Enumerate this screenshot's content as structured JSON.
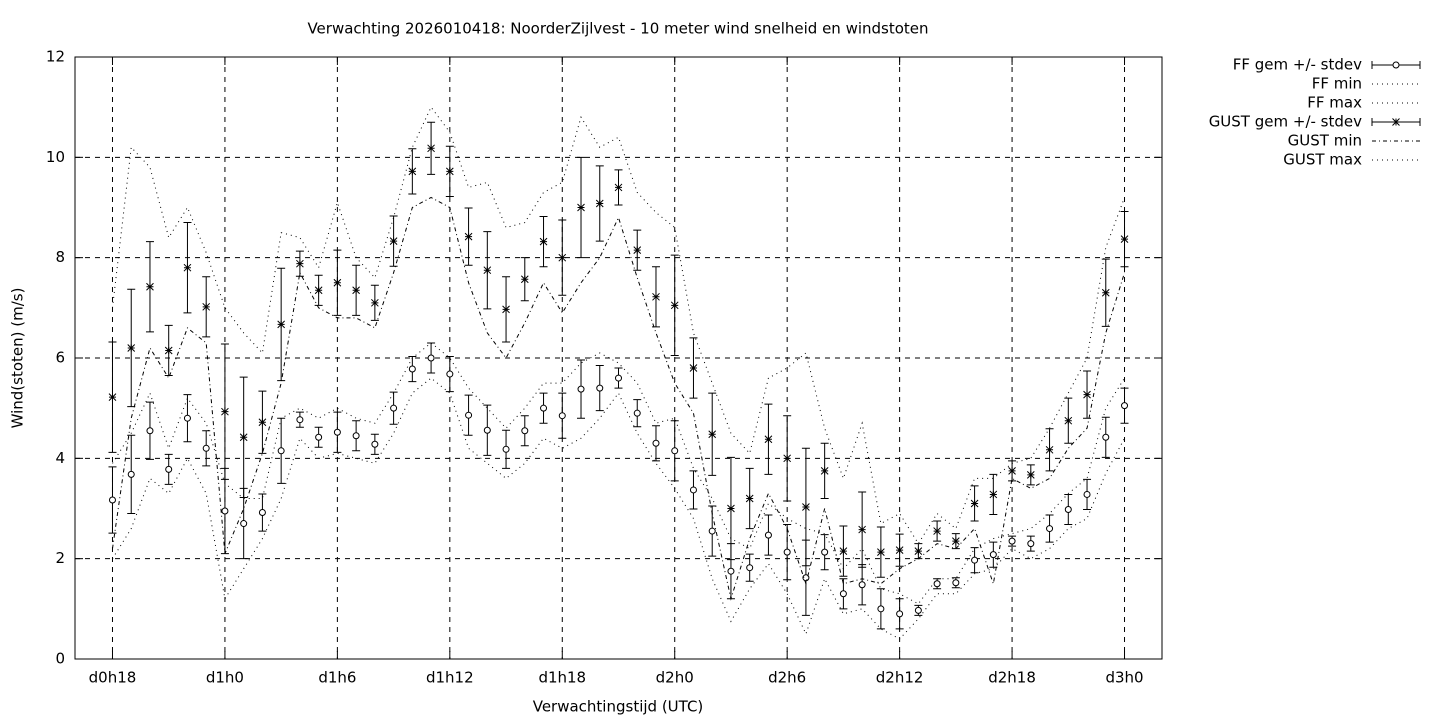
{
  "chart_data": {
    "type": "errorbar",
    "title": "Verwachting 2026010418: NoorderZijlvest - 10 meter wind snelheid en windstoten",
    "xlabel": "Verwachtingstijd (UTC)",
    "ylabel": "Wind(stoten) (m/s)",
    "categories": [
      "d0h18",
      null,
      null,
      null,
      null,
      null,
      "d1h0",
      null,
      null,
      null,
      null,
      null,
      "d1h6",
      null,
      null,
      null,
      null,
      null,
      "d1h12",
      null,
      null,
      null,
      null,
      null,
      "d1h18",
      null,
      null,
      null,
      null,
      null,
      "d2h0",
      null,
      null,
      null,
      null,
      null,
      "d2h6",
      null,
      null,
      null,
      null,
      null,
      "d2h12",
      null,
      null,
      null,
      null,
      null,
      "d2h18",
      null,
      null,
      null,
      null,
      null,
      "d3h0"
    ],
    "ylim": [
      0,
      12
    ],
    "yticks": [
      0,
      2,
      4,
      6,
      8,
      10,
      12
    ],
    "grid": true,
    "legend": "outside-top-right",
    "series": [
      {
        "name": "FF gem +/- stdev",
        "color": "#000000",
        "marker": "circle",
        "values": [
          3.17,
          3.68,
          4.55,
          3.78,
          4.8,
          4.2,
          2.95,
          2.7,
          2.92,
          4.15,
          4.77,
          4.42,
          4.52,
          4.45,
          4.28,
          5.0,
          5.78,
          6.0,
          5.68,
          4.86,
          4.56,
          4.18,
          4.55,
          5.0,
          4.85,
          5.38,
          5.4,
          5.6,
          4.9,
          4.3,
          4.15,
          3.37,
          2.55,
          1.75,
          1.82,
          2.47,
          2.13,
          1.62,
          2.13,
          1.3,
          1.48,
          1.0,
          0.9,
          0.97,
          1.5,
          1.52,
          1.97,
          2.08,
          2.35,
          2.3,
          2.6,
          2.98,
          3.28,
          4.42,
          5.05
        ],
        "errors": [
          0.66,
          0.78,
          0.57,
          0.3,
          0.47,
          0.35,
          0.85,
          0.7,
          0.37,
          0.65,
          0.15,
          0.2,
          0.4,
          0.3,
          0.2,
          0.32,
          0.25,
          0.3,
          0.35,
          0.4,
          0.5,
          0.38,
          0.3,
          0.3,
          0.45,
          0.58,
          0.45,
          0.2,
          0.27,
          0.35,
          0.6,
          0.38,
          0.5,
          0.55,
          0.27,
          0.4,
          0.55,
          0.75,
          0.35,
          0.3,
          0.4,
          0.4,
          0.3,
          0.1,
          0.1,
          0.1,
          0.25,
          0.25,
          0.1,
          0.15,
          0.27,
          0.3,
          0.3,
          0.4,
          0.35
        ]
      },
      {
        "name": "FF min",
        "color": "#000000",
        "line_style": "dotted",
        "values": [
          2.0,
          2.6,
          3.6,
          3.3,
          4.0,
          3.3,
          1.2,
          1.8,
          2.4,
          3.2,
          4.4,
          4.0,
          4.1,
          4.0,
          3.9,
          4.5,
          5.3,
          5.6,
          5.3,
          4.2,
          3.9,
          3.6,
          3.9,
          4.4,
          4.2,
          4.4,
          4.8,
          5.3,
          4.5,
          3.9,
          3.4,
          2.8,
          1.6,
          0.75,
          1.4,
          1.9,
          1.3,
          0.5,
          1.6,
          0.9,
          1.0,
          0.6,
          0.4,
          0.8,
          1.3,
          1.3,
          1.7,
          1.8,
          2.2,
          2.0,
          2.2,
          2.6,
          2.8,
          3.7,
          4.4
        ]
      },
      {
        "name": "FF max",
        "color": "#000000",
        "line_style": "dotted",
        "values": [
          3.9,
          4.5,
          5.3,
          4.2,
          5.2,
          4.7,
          3.5,
          3.2,
          3.2,
          4.8,
          5.0,
          4.8,
          5.0,
          4.8,
          4.7,
          5.3,
          6.0,
          6.3,
          6.0,
          5.4,
          5.0,
          4.6,
          5.0,
          5.5,
          5.5,
          5.9,
          6.1,
          5.9,
          5.5,
          4.7,
          4.8,
          3.8,
          3.2,
          2.4,
          2.2,
          3.1,
          2.8,
          2.6,
          2.5,
          1.8,
          2.2,
          1.4,
          1.3,
          1.1,
          1.6,
          1.6,
          2.2,
          2.4,
          2.5,
          2.6,
          2.9,
          3.3,
          3.6,
          5.0,
          5.6
        ]
      },
      {
        "name": "GUST gem +/- stdev",
        "color": "#000000",
        "marker": "star",
        "values": [
          5.22,
          6.2,
          7.42,
          6.15,
          7.8,
          7.02,
          4.93,
          4.42,
          4.72,
          6.67,
          7.88,
          7.35,
          7.5,
          7.35,
          7.1,
          8.33,
          9.72,
          10.18,
          9.72,
          8.42,
          7.75,
          6.97,
          7.57,
          8.32,
          8.0,
          9.0,
          9.08,
          9.4,
          8.15,
          7.22,
          7.05,
          5.8,
          4.48,
          3.0,
          3.2,
          4.38,
          4.0,
          3.03,
          3.75,
          2.15,
          2.58,
          2.13,
          2.17,
          2.15,
          2.55,
          2.35,
          3.1,
          3.28,
          3.75,
          3.67,
          4.17,
          4.75,
          5.27,
          7.3,
          8.37
        ],
        "errors": [
          1.1,
          1.17,
          0.9,
          0.5,
          0.9,
          0.6,
          1.35,
          1.2,
          0.62,
          1.12,
          0.25,
          0.3,
          0.65,
          0.5,
          0.35,
          0.5,
          0.45,
          0.52,
          0.5,
          0.57,
          0.77,
          0.65,
          0.43,
          0.5,
          0.75,
          1.0,
          0.75,
          0.35,
          0.4,
          0.6,
          1.0,
          0.6,
          0.82,
          1.02,
          0.6,
          0.7,
          0.85,
          1.17,
          0.55,
          0.5,
          0.75,
          0.5,
          0.32,
          0.15,
          0.2,
          0.15,
          0.35,
          0.4,
          0.2,
          0.2,
          0.42,
          0.45,
          0.47,
          0.67,
          0.55
        ]
      },
      {
        "name": "GUST min",
        "color": "#000000",
        "line_style": "dashdot",
        "values": [
          2.2,
          4.8,
          6.2,
          5.6,
          6.6,
          6.3,
          2.1,
          3.0,
          4.1,
          5.5,
          7.7,
          7.0,
          6.8,
          6.8,
          6.6,
          7.7,
          9.0,
          9.2,
          9.0,
          7.5,
          6.5,
          6.0,
          6.7,
          7.5,
          6.9,
          7.5,
          8.0,
          8.8,
          7.6,
          6.5,
          5.5,
          4.9,
          2.9,
          1.2,
          2.4,
          3.3,
          2.6,
          1.5,
          3.0,
          1.5,
          1.6,
          1.5,
          1.8,
          2.0,
          2.3,
          2.2,
          2.6,
          1.5,
          3.6,
          3.4,
          3.6,
          4.2,
          4.6,
          6.5,
          7.7
        ]
      },
      {
        "name": "GUST max",
        "color": "#000000",
        "line_style": "dotted",
        "values": [
          7.0,
          10.2,
          9.8,
          8.4,
          9.0,
          8.1,
          7.0,
          6.5,
          6.1,
          8.5,
          8.4,
          7.8,
          9.1,
          8.0,
          7.6,
          8.8,
          10.2,
          11.0,
          10.5,
          9.4,
          9.5,
          8.6,
          8.7,
          9.3,
          9.5,
          10.8,
          10.2,
          10.4,
          9.3,
          8.9,
          8.6,
          6.5,
          5.5,
          4.5,
          4.1,
          5.6,
          5.8,
          6.1,
          4.6,
          3.6,
          4.7,
          2.7,
          2.9,
          2.3,
          2.9,
          2.6,
          3.6,
          3.6,
          3.9,
          4.0,
          4.6,
          5.3,
          6.0,
          8.2,
          9.2
        ]
      }
    ]
  }
}
